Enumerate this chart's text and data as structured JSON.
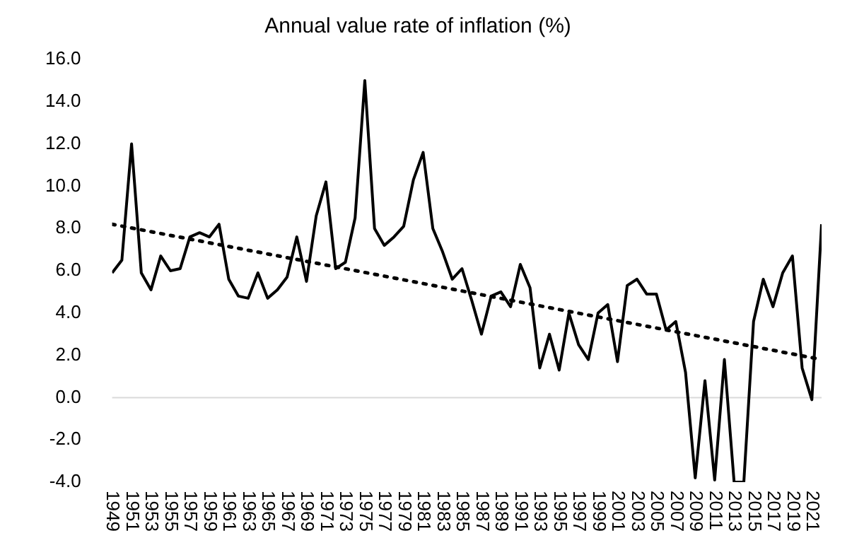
{
  "chart_data": {
    "type": "line",
    "title": "Annual value rate of inflation (%)",
    "x": [
      1949,
      1950,
      1951,
      1952,
      1953,
      1954,
      1955,
      1956,
      1957,
      1958,
      1959,
      1960,
      1961,
      1962,
      1963,
      1964,
      1965,
      1966,
      1967,
      1968,
      1969,
      1970,
      1971,
      1972,
      1973,
      1974,
      1975,
      1976,
      1977,
      1978,
      1979,
      1980,
      1981,
      1982,
      1983,
      1984,
      1985,
      1986,
      1987,
      1988,
      1989,
      1990,
      1991,
      1992,
      1993,
      1994,
      1995,
      1996,
      1997,
      1998,
      1999,
      2000,
      2001,
      2002,
      2003,
      2004,
      2005,
      2006,
      2007,
      2008,
      2009,
      2010,
      2011,
      2012,
      2013,
      2014,
      2015,
      2016,
      2017,
      2018,
      2019,
      2020,
      2021,
      2022
    ],
    "series": [
      {
        "color": "#000000",
        "line_style": "solid",
        "values": [
          5.9,
          6.5,
          12.0,
          5.9,
          5.1,
          6.7,
          6.0,
          6.1,
          7.6,
          7.8,
          7.6,
          8.2,
          5.6,
          4.8,
          4.7,
          5.9,
          4.7,
          5.1,
          5.7,
          7.6,
          5.5,
          8.6,
          10.2,
          6.1,
          6.4,
          8.5,
          15.0,
          8.0,
          7.2,
          7.6,
          8.1,
          10.3,
          11.6,
          8.0,
          6.9,
          5.6,
          6.1,
          4.6,
          3.0,
          4.8,
          5.0,
          4.3,
          6.3,
          5.2,
          1.4,
          3.0,
          1.3,
          4.0,
          2.5,
          1.8,
          4.0,
          4.4,
          1.7,
          5.3,
          5.6,
          4.9,
          4.9,
          3.2,
          3.6,
          1.2,
          -3.8,
          0.8,
          -3.9,
          1.8,
          -4.0,
          -4.0,
          3.6,
          5.6,
          4.3,
          5.9,
          6.7,
          1.4,
          -0.1,
          8.2
        ]
      },
      {
        "type": "line",
        "color": "#000000",
        "line_style": "dotted",
        "x": [
          1949,
          2022
        ],
        "values": [
          8.2,
          1.8
        ]
      }
    ],
    "xlim": [
      1949,
      2022
    ],
    "xticks": [
      1949,
      1951,
      1953,
      1955,
      1957,
      1959,
      1961,
      1963,
      1965,
      1967,
      1969,
      1971,
      1973,
      1975,
      1977,
      1979,
      1981,
      1983,
      1985,
      1987,
      1989,
      1991,
      1993,
      1995,
      1997,
      1999,
      2001,
      2003,
      2005,
      2007,
      2009,
      2011,
      2013,
      2015,
      2017,
      2019,
      2021
    ],
    "ylim": [
      -4,
      16
    ],
    "yticks": [
      {
        "value": -4,
        "label": "-4.0"
      },
      {
        "value": -2,
        "label": "-2.0"
      },
      {
        "value": 0,
        "label": "0.0"
      },
      {
        "value": 2,
        "label": "2.0"
      },
      {
        "value": 4,
        "label": "4.0"
      },
      {
        "value": 6,
        "label": "6.0"
      },
      {
        "value": 8,
        "label": "8.0"
      },
      {
        "value": 10,
        "label": "10.0"
      },
      {
        "value": 12,
        "label": "12.0"
      },
      {
        "value": 14,
        "label": "14.0"
      },
      {
        "value": 16,
        "label": "16.0"
      }
    ],
    "ref_lines": [
      {
        "axis": "y",
        "value": 0,
        "color": "#d9d9d9"
      }
    ],
    "grid": false,
    "legend": false,
    "marker": "none"
  }
}
